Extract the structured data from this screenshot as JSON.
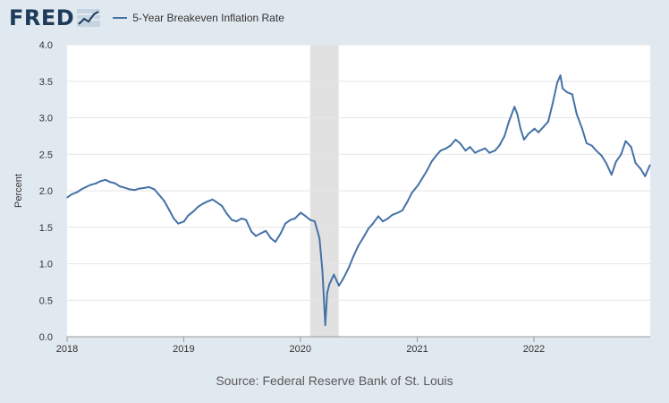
{
  "header": {
    "logo_text": "FRED",
    "logo_icon": "line-chart-icon"
  },
  "source_text": "Source: Federal Reserve Bank of St. Louis",
  "colors": {
    "line": "#4572a7",
    "recession": "#e1e1e1",
    "background": "#e1e9f0",
    "plot": "#ffffff"
  },
  "chart_data": {
    "type": "line",
    "title": "",
    "ylabel": "Percent",
    "xlabel": "",
    "ylim": [
      0,
      4
    ],
    "xlim": [
      "2018-01-01",
      "2022-12-31"
    ],
    "y_ticks": [
      "0.0",
      "0.5",
      "1.0",
      "1.5",
      "2.0",
      "2.5",
      "3.0",
      "3.5",
      "4.0"
    ],
    "x_ticks": [
      "2018",
      "2019",
      "2020",
      "2021",
      "2022"
    ],
    "grid": true,
    "legend": "top-left",
    "recession_shading": [
      [
        "2020-02-01",
        "2020-04-30"
      ]
    ],
    "series": [
      {
        "name": "5-Year Breakeven Inflation Rate",
        "x": [
          "2018-01-02",
          "2018-01-15",
          "2018-02-01",
          "2018-02-15",
          "2018-03-01",
          "2018-03-15",
          "2018-04-01",
          "2018-04-15",
          "2018-05-01",
          "2018-05-15",
          "2018-06-01",
          "2018-06-15",
          "2018-07-01",
          "2018-07-15",
          "2018-08-01",
          "2018-08-15",
          "2018-09-01",
          "2018-09-15",
          "2018-10-01",
          "2018-10-15",
          "2018-11-01",
          "2018-11-15",
          "2018-12-01",
          "2018-12-15",
          "2019-01-02",
          "2019-01-15",
          "2019-02-01",
          "2019-02-15",
          "2019-03-01",
          "2019-03-15",
          "2019-04-01",
          "2019-04-15",
          "2019-05-01",
          "2019-05-15",
          "2019-06-01",
          "2019-06-15",
          "2019-07-01",
          "2019-07-15",
          "2019-08-01",
          "2019-08-15",
          "2019-09-01",
          "2019-09-15",
          "2019-10-01",
          "2019-10-15",
          "2019-11-01",
          "2019-11-15",
          "2019-12-01",
          "2019-12-15",
          "2020-01-02",
          "2020-01-15",
          "2020-02-01",
          "2020-02-15",
          "2020-03-01",
          "2020-03-10",
          "2020-03-19",
          "2020-03-25",
          "2020-04-01",
          "2020-04-15",
          "2020-05-01",
          "2020-05-15",
          "2020-06-01",
          "2020-06-15",
          "2020-07-01",
          "2020-07-15",
          "2020-08-01",
          "2020-08-15",
          "2020-09-01",
          "2020-09-15",
          "2020-10-01",
          "2020-10-15",
          "2020-11-01",
          "2020-11-15",
          "2020-12-01",
          "2020-12-15",
          "2021-01-04",
          "2021-01-15",
          "2021-02-01",
          "2021-02-15",
          "2021-03-01",
          "2021-03-15",
          "2021-04-01",
          "2021-04-15",
          "2021-05-01",
          "2021-05-15",
          "2021-06-01",
          "2021-06-15",
          "2021-07-01",
          "2021-07-15",
          "2021-08-01",
          "2021-08-15",
          "2021-09-01",
          "2021-09-15",
          "2021-10-01",
          "2021-10-15",
          "2021-11-01",
          "2021-11-10",
          "2021-11-20",
          "2021-12-01",
          "2021-12-15",
          "2022-01-03",
          "2022-01-15",
          "2022-02-01",
          "2022-02-15",
          "2022-03-01",
          "2022-03-15",
          "2022-03-25",
          "2022-04-01",
          "2022-04-15",
          "2022-05-01",
          "2022-05-15",
          "2022-06-01",
          "2022-06-15",
          "2022-07-01",
          "2022-07-15",
          "2022-08-01",
          "2022-08-15",
          "2022-09-01",
          "2022-09-15",
          "2022-10-01",
          "2022-10-15",
          "2022-11-01",
          "2022-11-15",
          "2022-12-01",
          "2022-12-15",
          "2022-12-30"
        ],
        "y": [
          1.91,
          1.95,
          1.98,
          2.02,
          2.05,
          2.08,
          2.1,
          2.13,
          2.15,
          2.12,
          2.1,
          2.06,
          2.04,
          2.02,
          2.01,
          2.03,
          2.04,
          2.05,
          2.02,
          1.95,
          1.86,
          1.75,
          1.62,
          1.55,
          1.58,
          1.66,
          1.72,
          1.78,
          1.82,
          1.85,
          1.88,
          1.84,
          1.79,
          1.69,
          1.6,
          1.58,
          1.62,
          1.6,
          1.44,
          1.38,
          1.42,
          1.45,
          1.35,
          1.3,
          1.42,
          1.55,
          1.6,
          1.62,
          1.7,
          1.66,
          1.6,
          1.58,
          1.35,
          0.9,
          0.16,
          0.6,
          0.72,
          0.85,
          0.7,
          0.8,
          0.95,
          1.1,
          1.25,
          1.35,
          1.48,
          1.55,
          1.65,
          1.58,
          1.62,
          1.67,
          1.7,
          1.73,
          1.85,
          1.97,
          2.08,
          2.16,
          2.28,
          2.4,
          2.48,
          2.55,
          2.58,
          2.62,
          2.7,
          2.65,
          2.55,
          2.6,
          2.52,
          2.55,
          2.58,
          2.52,
          2.55,
          2.62,
          2.75,
          2.95,
          3.15,
          3.05,
          2.85,
          2.7,
          2.78,
          2.85,
          2.8,
          2.88,
          2.95,
          3.2,
          3.48,
          3.58,
          3.4,
          3.35,
          3.32,
          3.05,
          2.85,
          2.65,
          2.62,
          2.55,
          2.48,
          2.38,
          2.22,
          2.4,
          2.5,
          2.68,
          2.6,
          2.38,
          2.3,
          2.2,
          2.35
        ]
      }
    ]
  }
}
